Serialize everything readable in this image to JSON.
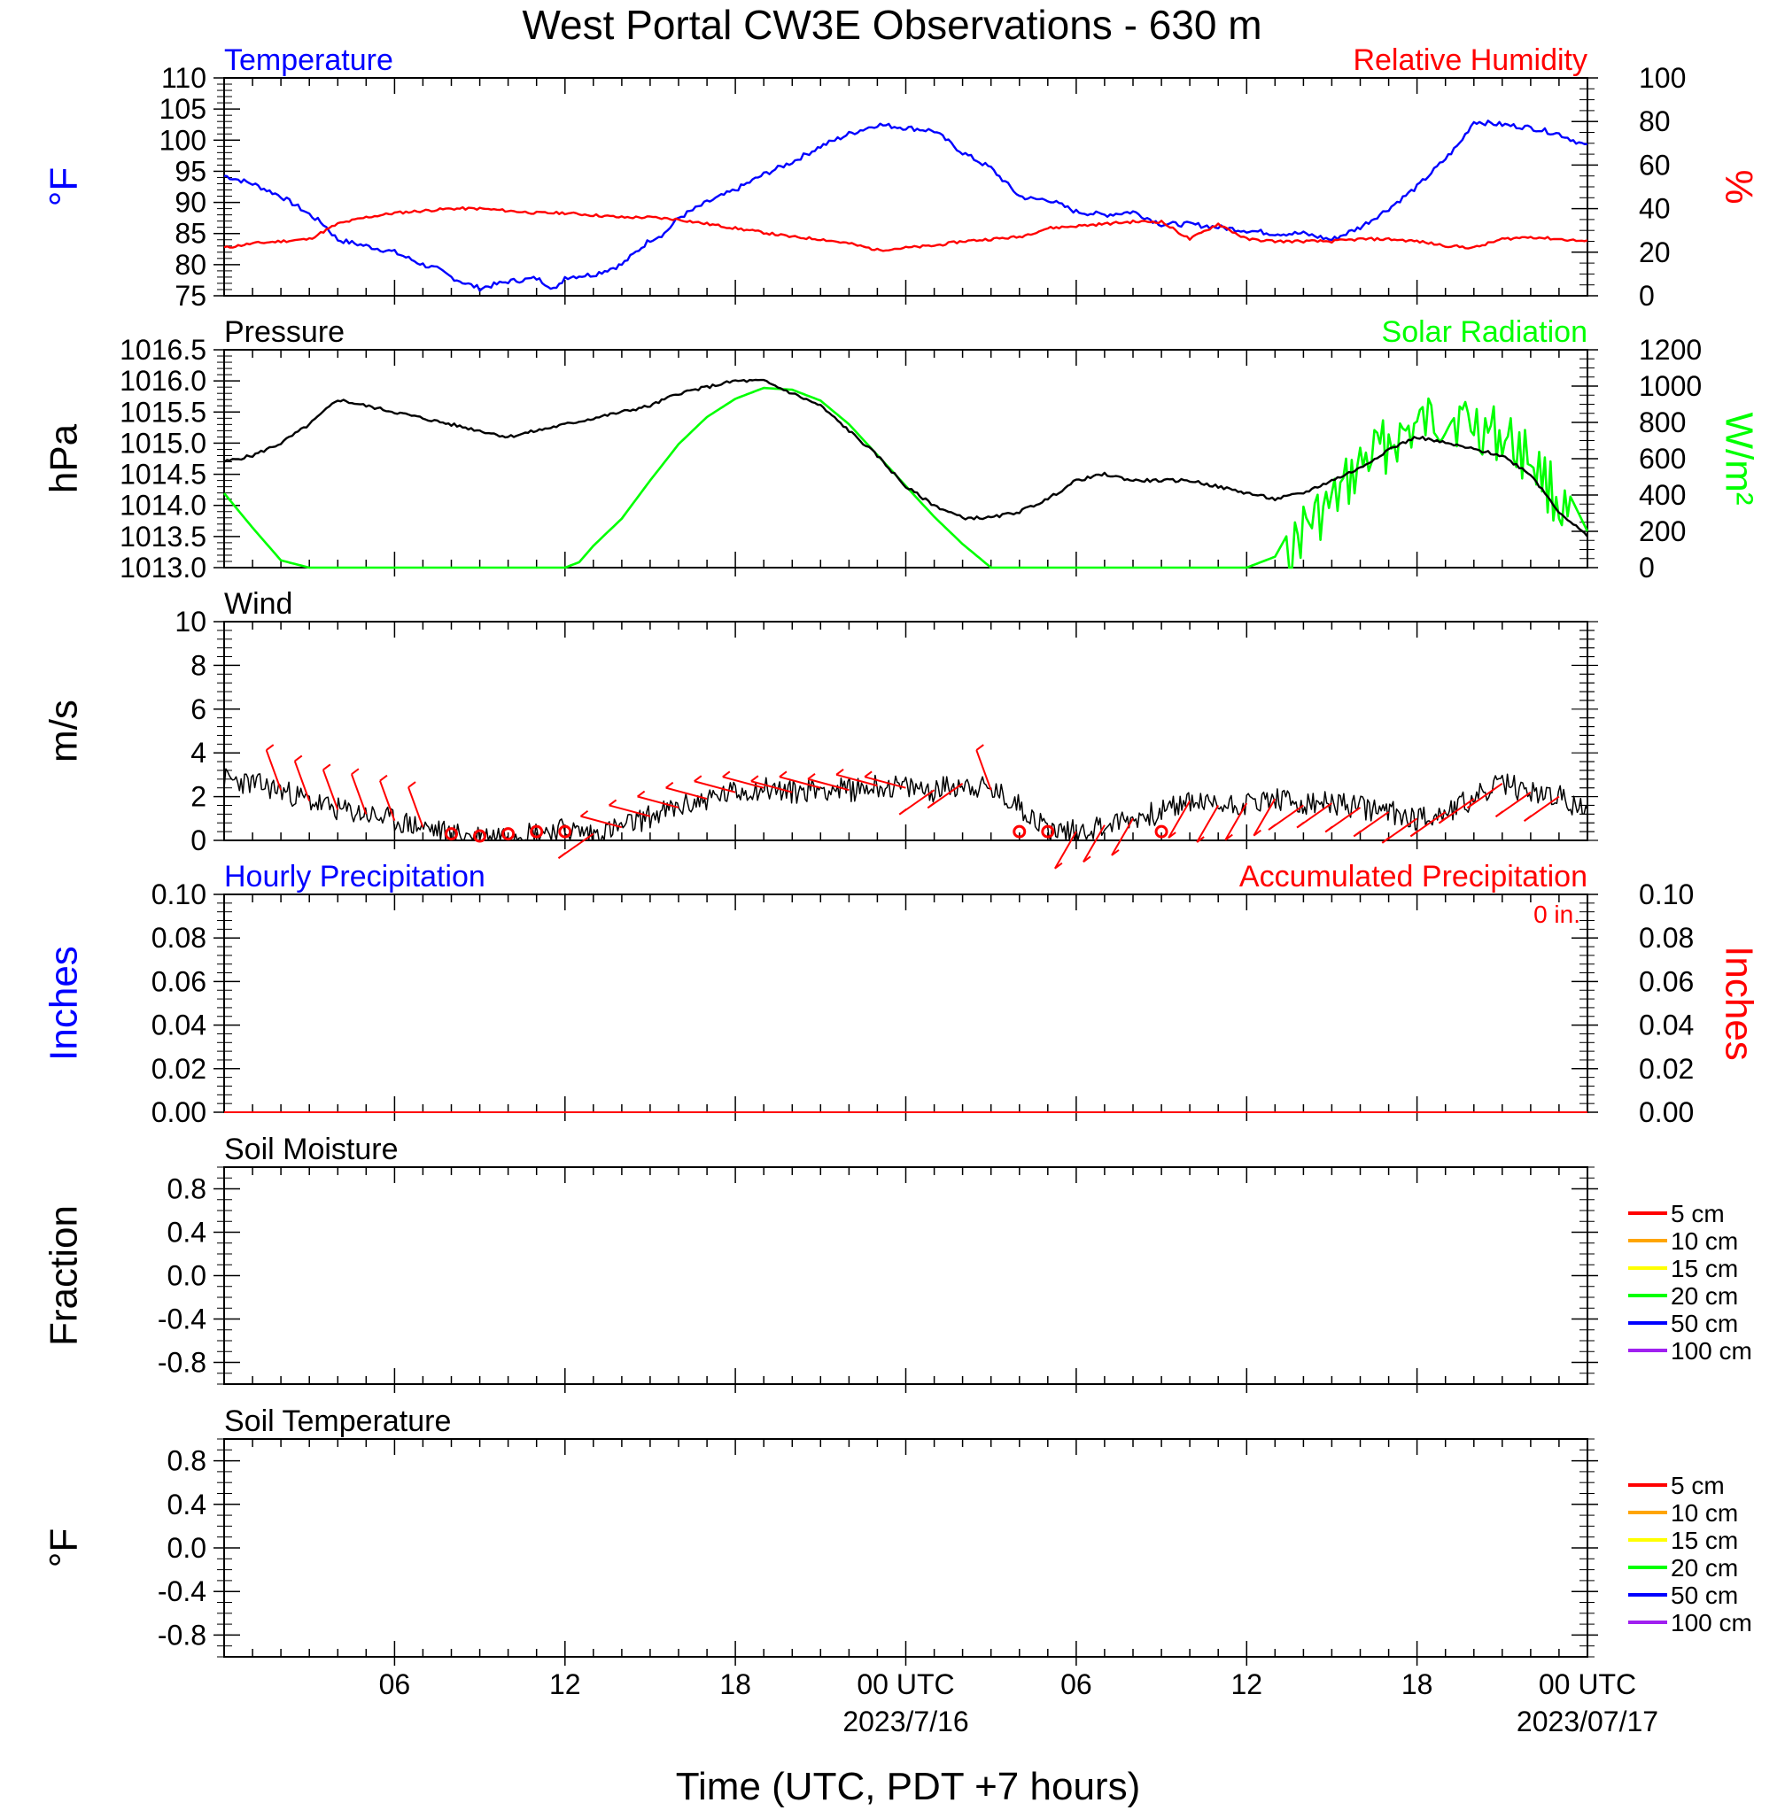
{
  "title": "West Portal CW3E Observations - 630 m",
  "x_axis": {
    "label": "Time (UTC, PDT +7 hours)",
    "tick_labels": [
      "06",
      "12",
      "18",
      "00 UTC",
      "06",
      "12",
      "18",
      "00 UTC"
    ],
    "tick_hours": [
      6,
      12,
      18,
      24,
      30,
      36,
      42,
      48
    ],
    "date_labels": [
      {
        "text": "2023/7/16",
        "hour": 24
      },
      {
        "text": "2023/07/17",
        "hour": 48
      }
    ],
    "range_hours": [
      0,
      48
    ]
  },
  "colors": {
    "temperature": "#0000ff",
    "humidity": "#ff0000",
    "pressure": "#000000",
    "solar": "#00ff00",
    "wind": "#000000",
    "wind_barb": "#ff0000",
    "hourly_precip": "#0000ff",
    "accum_precip": "#ff0000"
  },
  "panels": {
    "temp_rh": {
      "left_title": "Temperature",
      "right_title": "Relative Humidity",
      "left_unit": "°F",
      "right_unit": "%",
      "left_ticks": [
        "110",
        "105",
        "100",
        "95",
        "90",
        "85",
        "80",
        "75"
      ],
      "right_ticks": [
        "100",
        "80",
        "60",
        "40",
        "20",
        "0"
      ]
    },
    "pressure_solar": {
      "left_title": "Pressure",
      "right_title": "Solar Radiation",
      "left_unit": "hPa",
      "right_unit": "W/m²",
      "left_ticks": [
        "1016.5",
        "1016.0",
        "1015.5",
        "1015.0",
        "1014.5",
        "1014.0",
        "1013.5",
        "1013.0"
      ],
      "right_ticks": [
        "1200",
        "1000",
        "800",
        "600",
        "400",
        "200",
        "0"
      ]
    },
    "wind": {
      "left_title": "Wind",
      "left_unit": "m/s",
      "left_ticks": [
        "10",
        "8",
        "6",
        "4",
        "2",
        "0"
      ]
    },
    "precip": {
      "left_title": "Hourly Precipitation",
      "right_title": "Accumulated Precipitation",
      "accum_text": "0 in.",
      "left_unit": "Inches",
      "right_unit": "Inches",
      "left_ticks": [
        "0.10",
        "0.08",
        "0.06",
        "0.04",
        "0.02",
        "0.00"
      ],
      "right_ticks": [
        "0.10",
        "0.08",
        "0.06",
        "0.04",
        "0.02",
        "0.00"
      ]
    },
    "soil_moisture": {
      "left_title": "Soil Moisture",
      "left_unit": "Fraction",
      "left_ticks": [
        "0.8",
        "0.4",
        "0.0",
        "-0.4",
        "-0.8"
      ],
      "legend": [
        "5 cm",
        "10 cm",
        "15 cm",
        "20 cm",
        "50 cm",
        "100 cm"
      ]
    },
    "soil_temp": {
      "left_title": "Soil Temperature",
      "left_unit": "°F",
      "left_ticks": [
        "0.8",
        "0.4",
        "0.0",
        "-0.4",
        "-0.8"
      ],
      "legend": [
        "5 cm",
        "10 cm",
        "15 cm",
        "20 cm",
        "50 cm",
        "100 cm"
      ]
    }
  },
  "legend_colors": [
    "#ff0000",
    "#ffa500",
    "#ffff00",
    "#00ff00",
    "#0000ff",
    "#a020f0"
  ],
  "chart_data": [
    {
      "type": "line",
      "panel": "temp_rh",
      "x_unit": "hours since start of plot (UTC)",
      "series": [
        {
          "name": "Temperature",
          "axis": "left",
          "x": [
            0,
            1,
            2,
            2.7,
            3.5,
            4,
            5,
            6,
            7,
            7.5,
            8,
            8.5,
            9,
            10,
            11,
            11.7,
            12,
            13,
            14,
            15,
            15.5,
            16,
            17,
            18,
            19,
            20,
            21,
            22,
            23,
            24,
            25,
            26,
            27,
            28,
            28.5,
            29,
            30,
            31,
            32,
            33,
            34,
            35,
            36,
            37,
            38,
            39,
            40,
            41,
            42,
            43,
            43.5,
            44,
            45,
            46,
            47,
            48
          ],
          "y": [
            94.3,
            93,
            91,
            89,
            86.5,
            84,
            83,
            82,
            80,
            79.3,
            78,
            77,
            76.2,
            77.3,
            77.8,
            76,
            78,
            78.4,
            80,
            84,
            85,
            87.5,
            90,
            92,
            94.5,
            96.5,
            99,
            101,
            102.5,
            102,
            101.5,
            98,
            95.5,
            91,
            90.5,
            90.5,
            88.5,
            88,
            88.5,
            86.5,
            86.5,
            86,
            85.5,
            85,
            85,
            84,
            86,
            89,
            92.5,
            97,
            99.5,
            103,
            102.5,
            102,
            101,
            99
          ]
        },
        {
          "name": "Relative Humidity",
          "axis": "right",
          "x": [
            0,
            1,
            2,
            3,
            4,
            5,
            6,
            7,
            8,
            9,
            10,
            11,
            12,
            13,
            14,
            15,
            16,
            17,
            18,
            19,
            20,
            21,
            22,
            23,
            24,
            25,
            26,
            27,
            28,
            29,
            30,
            31,
            32,
            33,
            34,
            35,
            36,
            37,
            38,
            39,
            40,
            41,
            42,
            43,
            44,
            45,
            46,
            47,
            48
          ],
          "y": [
            22,
            24,
            25,
            26,
            33,
            36,
            38,
            39,
            40,
            40,
            39,
            38,
            38,
            37,
            36,
            36,
            35,
            33,
            31,
            29,
            27,
            26,
            24,
            21,
            22,
            23,
            25,
            26,
            27,
            31,
            32,
            33,
            34,
            34,
            26,
            33,
            26,
            25,
            25,
            25,
            26,
            26,
            25,
            23,
            22,
            26,
            27,
            26,
            25
          ]
        }
      ],
      "left_ylim": [
        75,
        110
      ],
      "right_ylim": [
        0,
        100
      ]
    },
    {
      "type": "line",
      "panel": "pressure_solar",
      "x_unit": "hours since start of plot (UTC)",
      "series": [
        {
          "name": "Pressure",
          "axis": "left",
          "x": [
            0,
            1,
            2,
            3,
            4,
            5,
            6,
            7,
            8,
            9,
            10,
            11,
            12,
            13,
            14,
            15,
            16,
            17,
            18,
            19,
            20,
            21,
            22,
            23,
            24,
            25,
            26,
            27,
            28,
            29,
            30,
            31,
            32,
            33,
            34,
            35,
            36,
            37,
            38,
            39,
            40,
            41,
            42,
            43,
            44,
            45,
            46,
            47,
            48
          ],
          "y": [
            1014.7,
            1014.8,
            1015.0,
            1015.3,
            1015.7,
            1015.6,
            1015.5,
            1015.4,
            1015.3,
            1015.2,
            1015.1,
            1015.2,
            1015.3,
            1015.4,
            1015.5,
            1015.6,
            1015.8,
            1015.9,
            1016.0,
            1016.0,
            1015.8,
            1015.6,
            1015.2,
            1014.8,
            1014.3,
            1014.0,
            1013.8,
            1013.8,
            1013.9,
            1014.1,
            1014.4,
            1014.5,
            1014.4,
            1014.4,
            1014.4,
            1014.3,
            1014.2,
            1014.1,
            1014.2,
            1014.4,
            1014.6,
            1014.9,
            1015.1,
            1015.0,
            1014.9,
            1014.8,
            1014.5,
            1013.9,
            1013.5
          ]
        },
        {
          "name": "Solar Radiation",
          "axis": "right",
          "x": [
            0,
            1,
            2,
            3,
            12,
            12.5,
            13,
            14,
            15,
            16,
            17,
            18,
            19,
            20,
            21,
            22,
            23,
            24,
            25,
            26,
            27,
            35,
            36,
            37,
            37.5,
            38,
            39,
            40,
            41,
            42,
            43,
            44,
            45,
            46,
            47,
            48
          ],
          "y": [
            410,
            220,
            40,
            0,
            0,
            30,
            120,
            270,
            480,
            680,
            830,
            930,
            990,
            980,
            920,
            790,
            620,
            450,
            280,
            130,
            0,
            0,
            0,
            60,
            200,
            380,
            500,
            720,
            850,
            930,
            1000,
            950,
            880,
            770,
            520,
            200
          ]
        }
      ],
      "left_ylim": [
        1013.0,
        1016.5
      ],
      "right_ylim": [
        0,
        1200
      ]
    },
    {
      "type": "line",
      "panel": "wind",
      "x_unit": "hours since start of plot (UTC)",
      "series": [
        {
          "name": "Wind",
          "x": [
            0,
            1,
            2,
            3,
            4,
            5,
            6,
            7,
            8,
            9,
            10,
            11,
            12,
            13,
            14,
            15,
            16,
            17,
            18,
            19,
            20,
            21,
            22,
            23,
            24,
            25,
            26,
            27,
            28,
            29,
            30,
            31,
            32,
            33,
            34,
            35,
            36,
            37,
            38,
            39,
            40,
            41,
            42,
            43,
            44,
            45,
            46,
            47,
            48
          ],
          "y": [
            2.8,
            2.6,
            2.3,
            1.8,
            1.4,
            1.2,
            0.9,
            0.6,
            0.3,
            0.2,
            0.3,
            0.4,
            0.5,
            0.3,
            0.6,
            1.1,
            1.5,
            1.9,
            2.2,
            2.4,
            2.2,
            2.4,
            2.3,
            2.5,
            2.4,
            2.3,
            2.6,
            2.3,
            1.6,
            0.5,
            0.4,
            0.7,
            1.0,
            1.3,
            1.8,
            1.6,
            1.7,
            1.9,
            1.6,
            1.7,
            1.5,
            1.3,
            1.0,
            1.3,
            1.9,
            2.6,
            2.2,
            2.0,
            1.2
          ]
        }
      ],
      "barb_hours": [
        2,
        3,
        4,
        5,
        6,
        7,
        9,
        10,
        11,
        12,
        13,
        14,
        15,
        16,
        17,
        18,
        19,
        20,
        21,
        22,
        23,
        24,
        25,
        26,
        27,
        28,
        29,
        30,
        31,
        32,
        33,
        34,
        35,
        36,
        37,
        38,
        39,
        40,
        41,
        42,
        43,
        44,
        45,
        46,
        47
      ],
      "calm_hours": [
        8,
        9,
        10,
        11,
        12,
        28,
        29,
        33
      ],
      "ylim": [
        0,
        10
      ]
    },
    {
      "type": "line",
      "panel": "precip",
      "series": [
        {
          "name": "Hourly Precipitation",
          "x": [
            0,
            48
          ],
          "y": [
            0,
            0
          ]
        },
        {
          "name": "Accumulated Precipitation",
          "x": [
            0,
            48
          ],
          "y": [
            0,
            0
          ]
        }
      ],
      "ylim": [
        0,
        0.1
      ]
    }
  ]
}
